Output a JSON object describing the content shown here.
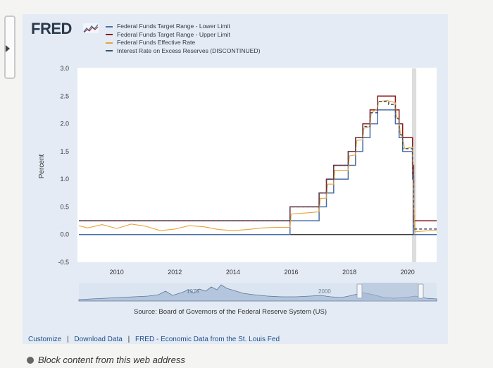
{
  "brand": {
    "logo_text": "FRED"
  },
  "footer": {
    "customize": "Customize",
    "download": "Download Data",
    "fred_link": "FRED - Economic Data from the St. Louis Fed",
    "separator": "|"
  },
  "blocked_notice": "Block content from this web address",
  "colors": {
    "lower": "#4a6fa5",
    "upper": "#8b1a1a",
    "effective": "#e8a33a",
    "ioer": "#3a5270"
  },
  "chart_data": {
    "type": "line",
    "title": "",
    "xlabel": "",
    "ylabel": "Percent",
    "xlim": [
      2008.7,
      2021.0
    ],
    "ylim": [
      -0.5,
      3.0
    ],
    "yticks": [
      "3.0",
      "2.5",
      "2.0",
      "1.5",
      "1.0",
      "0.5",
      "0.0",
      "-0.5"
    ],
    "xticks": [
      "2010",
      "2012",
      "2014",
      "2016",
      "2018",
      "2020"
    ],
    "source": "Source: Board of Governors of the Federal Reserve System (US)",
    "navigator_labels": [
      "1975",
      "2000"
    ],
    "recession_shading": [
      [
        2020.15,
        2020.3
      ]
    ],
    "series": [
      {
        "name": "Federal Funds Target Range - Lower Limit",
        "style": "solid",
        "points": [
          [
            2008.7,
            0.0
          ],
          [
            2015.96,
            0.0
          ],
          [
            2015.96,
            0.25
          ],
          [
            2016.96,
            0.25
          ],
          [
            2016.96,
            0.5
          ],
          [
            2017.21,
            0.5
          ],
          [
            2017.21,
            0.75
          ],
          [
            2017.46,
            0.75
          ],
          [
            2017.46,
            1.0
          ],
          [
            2017.96,
            1.0
          ],
          [
            2017.96,
            1.25
          ],
          [
            2018.21,
            1.25
          ],
          [
            2018.21,
            1.5
          ],
          [
            2018.46,
            1.5
          ],
          [
            2018.46,
            1.75
          ],
          [
            2018.71,
            1.75
          ],
          [
            2018.71,
            2.0
          ],
          [
            2018.97,
            2.0
          ],
          [
            2018.97,
            2.25
          ],
          [
            2019.58,
            2.25
          ],
          [
            2019.58,
            2.0
          ],
          [
            2019.71,
            2.0
          ],
          [
            2019.71,
            1.75
          ],
          [
            2019.83,
            1.75
          ],
          [
            2019.83,
            1.5
          ],
          [
            2020.17,
            1.5
          ],
          [
            2020.17,
            1.0
          ],
          [
            2020.21,
            1.0
          ],
          [
            2020.21,
            0.0
          ],
          [
            2021.0,
            0.0
          ]
        ]
      },
      {
        "name": "Federal Funds Target Range - Upper Limit",
        "style": "solid",
        "points": [
          [
            2008.7,
            0.25
          ],
          [
            2015.96,
            0.25
          ],
          [
            2015.96,
            0.5
          ],
          [
            2016.96,
            0.5
          ],
          [
            2016.96,
            0.75
          ],
          [
            2017.21,
            0.75
          ],
          [
            2017.21,
            1.0
          ],
          [
            2017.46,
            1.0
          ],
          [
            2017.46,
            1.25
          ],
          [
            2017.96,
            1.25
          ],
          [
            2017.96,
            1.5
          ],
          [
            2018.21,
            1.5
          ],
          [
            2018.21,
            1.75
          ],
          [
            2018.46,
            1.75
          ],
          [
            2018.46,
            2.0
          ],
          [
            2018.71,
            2.0
          ],
          [
            2018.71,
            2.25
          ],
          [
            2018.97,
            2.25
          ],
          [
            2018.97,
            2.5
          ],
          [
            2019.58,
            2.5
          ],
          [
            2019.58,
            2.25
          ],
          [
            2019.71,
            2.25
          ],
          [
            2019.71,
            2.0
          ],
          [
            2019.83,
            2.0
          ],
          [
            2019.83,
            1.75
          ],
          [
            2020.17,
            1.75
          ],
          [
            2020.17,
            1.25
          ],
          [
            2020.21,
            1.25
          ],
          [
            2020.21,
            0.25
          ],
          [
            2021.0,
            0.25
          ]
        ]
      },
      {
        "name": "Federal Funds Effective Rate",
        "style": "solid",
        "points": [
          [
            2008.7,
            0.16
          ],
          [
            2009.0,
            0.12
          ],
          [
            2009.5,
            0.18
          ],
          [
            2010.0,
            0.11
          ],
          [
            2010.5,
            0.19
          ],
          [
            2011.0,
            0.15
          ],
          [
            2011.5,
            0.07
          ],
          [
            2012.0,
            0.1
          ],
          [
            2012.5,
            0.16
          ],
          [
            2013.0,
            0.14
          ],
          [
            2013.5,
            0.09
          ],
          [
            2014.0,
            0.07
          ],
          [
            2014.5,
            0.09
          ],
          [
            2015.0,
            0.12
          ],
          [
            2015.5,
            0.13
          ],
          [
            2015.96,
            0.13
          ],
          [
            2016.0,
            0.37
          ],
          [
            2016.5,
            0.39
          ],
          [
            2016.96,
            0.41
          ],
          [
            2017.0,
            0.65
          ],
          [
            2017.21,
            0.66
          ],
          [
            2017.25,
            0.91
          ],
          [
            2017.46,
            0.91
          ],
          [
            2017.5,
            1.16
          ],
          [
            2017.96,
            1.16
          ],
          [
            2018.0,
            1.42
          ],
          [
            2018.21,
            1.44
          ],
          [
            2018.25,
            1.7
          ],
          [
            2018.46,
            1.71
          ],
          [
            2018.5,
            1.92
          ],
          [
            2018.71,
            1.95
          ],
          [
            2018.75,
            2.2
          ],
          [
            2018.97,
            2.27
          ],
          [
            2019.0,
            2.4
          ],
          [
            2019.3,
            2.42
          ],
          [
            2019.58,
            2.38
          ],
          [
            2019.62,
            2.13
          ],
          [
            2019.71,
            2.05
          ],
          [
            2019.75,
            1.83
          ],
          [
            2019.83,
            1.75
          ],
          [
            2019.9,
            1.55
          ],
          [
            2020.17,
            1.58
          ],
          [
            2020.21,
            0.65
          ],
          [
            2020.25,
            0.05
          ],
          [
            2021.0,
            0.08
          ]
        ]
      },
      {
        "name": "Interest Rate on Excess Reserves (DISCONTINUED)",
        "style": "dashed",
        "points": [
          [
            2008.7,
            0.25
          ],
          [
            2015.96,
            0.25
          ],
          [
            2015.96,
            0.5
          ],
          [
            2016.96,
            0.5
          ],
          [
            2016.96,
            0.75
          ],
          [
            2017.21,
            0.75
          ],
          [
            2017.21,
            1.0
          ],
          [
            2017.46,
            1.0
          ],
          [
            2017.46,
            1.25
          ],
          [
            2017.96,
            1.25
          ],
          [
            2017.96,
            1.5
          ],
          [
            2018.21,
            1.5
          ],
          [
            2018.21,
            1.75
          ],
          [
            2018.46,
            1.75
          ],
          [
            2018.46,
            1.95
          ],
          [
            2018.71,
            1.95
          ],
          [
            2018.71,
            2.2
          ],
          [
            2018.97,
            2.2
          ],
          [
            2018.97,
            2.4
          ],
          [
            2019.35,
            2.4
          ],
          [
            2019.35,
            2.35
          ],
          [
            2019.58,
            2.35
          ],
          [
            2019.58,
            2.1
          ],
          [
            2019.71,
            2.1
          ],
          [
            2019.71,
            1.8
          ],
          [
            2019.83,
            1.8
          ],
          [
            2019.83,
            1.55
          ],
          [
            2020.17,
            1.55
          ],
          [
            2020.17,
            1.1
          ],
          [
            2020.21,
            1.1
          ],
          [
            2020.21,
            0.1
          ],
          [
            2021.0,
            0.1
          ]
        ]
      }
    ]
  }
}
